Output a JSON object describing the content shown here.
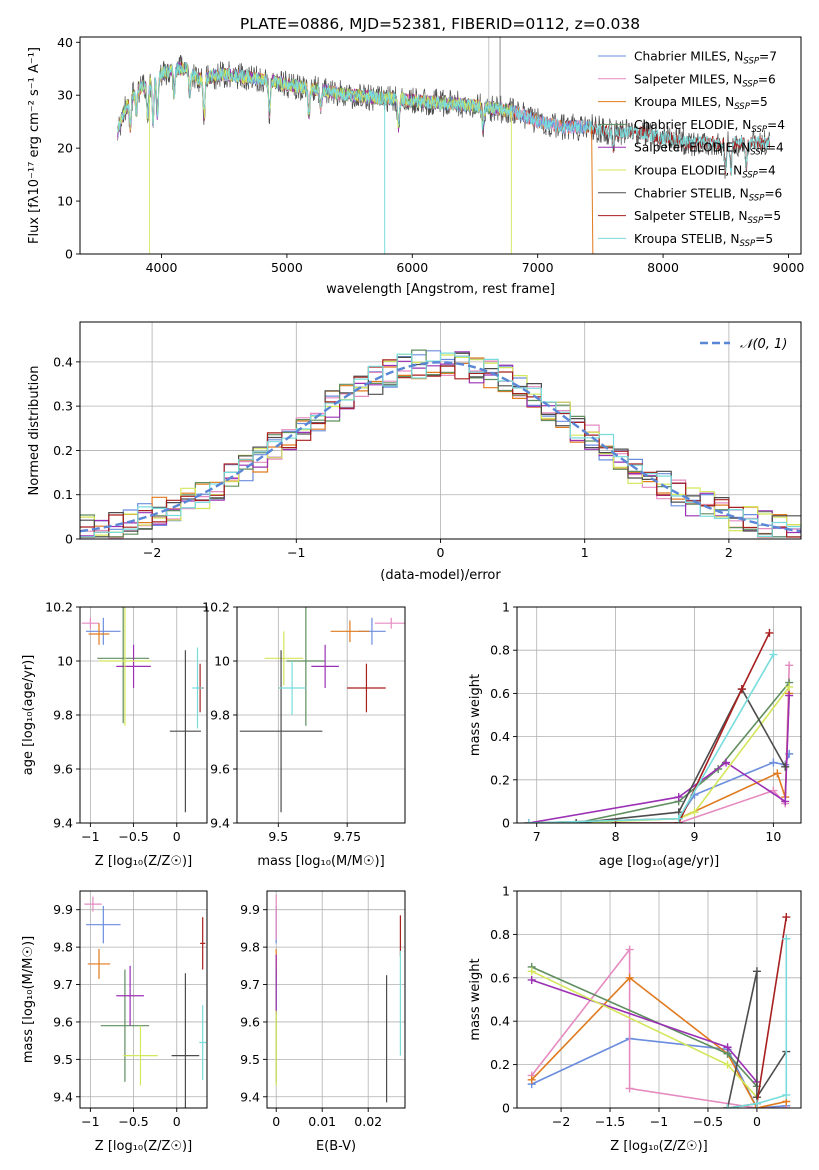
{
  "title": "PLATE=0886, MJD=52381, FIBERID=0112, z=0.038",
  "colors": {
    "ChabrierMILES": "#6b8ddd",
    "SalpeterMILES": "#e58bc0",
    "KroupaMILES": "#e07a1f",
    "ChabrierELODIE": "#5f8e5f",
    "SalpeterELODIE": "#9b30b4",
    "KroupaELODIE": "#d4e65a",
    "ChabrierSTELIB": "#4d4d4d",
    "SalpeterSTELIB": "#a81f1f",
    "KroupaSTELIB": "#79dcdc"
  },
  "chart_data": [
    {
      "type": "line",
      "name": "spectrum",
      "xlabel": "wavelength [Angstrom, rest frame]",
      "ylabel": "Flux [fλ10⁻¹⁷ erg cm⁻² s⁻¹ A⁻¹]",
      "xlim": [
        3350,
        9100
      ],
      "ylim": [
        0,
        41
      ],
      "xticks": [
        4000,
        5000,
        6000,
        7000,
        8000,
        9000
      ],
      "yticks": [
        0,
        10,
        20,
        30,
        40
      ],
      "grid": false,
      "legend_position": "top-right",
      "legend": [
        "Chabrier MILES, N_SSP=7",
        "Salpeter MILES, N_SSP=6",
        "Kroupa MILES, N_SSP=5",
        "Chabrier ELODIE, N_SSP=4",
        "Salpeter ELODIE, N_SSP=4",
        "Kroupa ELODIE, N_SSP=4",
        "Chabrier STELIB, N_SSP=6",
        "Salpeter STELIB, N_SSP=5",
        "Kroupa STELIB, N_SSP=5"
      ],
      "continuum": {
        "x": [
          3650,
          3700,
          3800,
          3900,
          4000,
          4100,
          4200,
          4300,
          4500,
          4800,
          5000,
          5500,
          6000,
          6500,
          6800,
          7000,
          7200,
          7400,
          7600,
          7800,
          8000,
          8200,
          8400,
          8600,
          8850
        ],
        "y": [
          23,
          27,
          31,
          32,
          34,
          35,
          35,
          33,
          34,
          33,
          32,
          30,
          29,
          28,
          27,
          25,
          24,
          24,
          23,
          23,
          22,
          21,
          21,
          21,
          21
        ]
      }
    },
    {
      "type": "bar",
      "name": "residuals",
      "xlabel": "(data-model)/error",
      "ylabel": "Normed distribution",
      "xlim": [
        -2.5,
        2.5
      ],
      "ylim": [
        0,
        0.49
      ],
      "xticks": [
        -2,
        -1,
        0,
        1,
        2
      ],
      "yticks": [
        0.0,
        0.1,
        0.2,
        0.3,
        0.4
      ],
      "grid": true,
      "legend_position": "top-right",
      "legend": [
        "𝒩(0, 1)"
      ],
      "bin_width": 0.1
    },
    {
      "type": "scatter",
      "name": "age-vs-Z",
      "xlabel": "Z [log₁₀(Z/Z☉)]",
      "ylabel": "age  [log₁₀(age/yr)]",
      "xlim": [
        -1.12,
        0.35
      ],
      "ylim": [
        9.4,
        10.2
      ],
      "xticks": [
        -1.0,
        -0.5,
        0.0
      ],
      "yticks": [
        9.4,
        9.6,
        9.8,
        10.0,
        10.2
      ],
      "grid": true,
      "points": [
        {
          "key": "ChabrierMILES",
          "x": -0.85,
          "xe": 0.2,
          "y": 10.11,
          "ye": 0.05
        },
        {
          "key": "SalpeterMILES",
          "x": -1.0,
          "xe": 0.1,
          "y": 10.14,
          "ye": 0.02
        },
        {
          "key": "KroupaMILES",
          "x": -0.9,
          "xe": 0.12,
          "y": 10.1,
          "ye": 0.04
        },
        {
          "key": "ChabrierELODIE",
          "x": -0.62,
          "xe": 0.3,
          "y": 10.01,
          "ye": 0.24
        },
        {
          "key": "SalpeterELODIE",
          "x": -0.5,
          "xe": 0.2,
          "y": 9.98,
          "ye": 0.08
        },
        {
          "key": "KroupaELODIE",
          "x": -0.6,
          "xe": 0.3,
          "y": 10.0,
          "ye": 0.24
        },
        {
          "key": "ChabrierSTELIB",
          "x": 0.1,
          "xe": 0.18,
          "y": 9.74,
          "ye": 0.3
        },
        {
          "key": "SalpeterSTELIB",
          "x": 0.27,
          "xe": 0.04,
          "y": 9.9,
          "ye": 0.09
        },
        {
          "key": "KroupaSTELIB",
          "x": 0.24,
          "xe": 0.06,
          "y": 9.9,
          "ye": 0.15
        }
      ]
    },
    {
      "type": "scatter",
      "name": "age-vs-mass",
      "xlabel": "mass [log₁₀(M/M☉)]",
      "ylabel": "",
      "xlim": [
        9.35,
        9.96
      ],
      "ylim": [
        9.4,
        10.2
      ],
      "xticks": [
        9.5,
        9.75
      ],
      "yticks": [
        9.4,
        9.6,
        9.8,
        10.0,
        10.2
      ],
      "grid": true,
      "points": [
        {
          "key": "ChabrierMILES",
          "x": 9.84,
          "xe": 0.05,
          "y": 10.11,
          "ye": 0.05
        },
        {
          "key": "SalpeterMILES",
          "x": 9.91,
          "xe": 0.06,
          "y": 10.14,
          "ye": 0.02
        },
        {
          "key": "KroupaMILES",
          "x": 9.76,
          "xe": 0.07,
          "y": 10.11,
          "ye": 0.04
        },
        {
          "key": "ChabrierELODIE",
          "x": 9.6,
          "xe": 0.07,
          "y": 10.0,
          "ye": 0.24
        },
        {
          "key": "SalpeterELODIE",
          "x": 9.67,
          "xe": 0.05,
          "y": 9.98,
          "ye": 0.08
        },
        {
          "key": "KroupaELODIE",
          "x": 9.52,
          "xe": 0.07,
          "y": 10.01,
          "ye": 0.1
        },
        {
          "key": "ChabrierSTELIB",
          "x": 9.51,
          "xe": 0.15,
          "y": 9.74,
          "ye": 0.3
        },
        {
          "key": "SalpeterSTELIB",
          "x": 9.82,
          "xe": 0.07,
          "y": 9.9,
          "ye": 0.09
        },
        {
          "key": "KroupaSTELIB",
          "x": 9.55,
          "xe": 0.05,
          "y": 9.9,
          "ye": 0.1
        }
      ]
    },
    {
      "type": "line",
      "name": "weight-vs-age",
      "xlabel": "age  [log₁₀(age/yr)]",
      "ylabel": "mass weight",
      "xlim": [
        6.75,
        10.35
      ],
      "ylim": [
        0,
        1
      ],
      "xticks": [
        7,
        8,
        9,
        10
      ],
      "yticks": [
        0.0,
        0.2,
        0.4,
        0.6,
        0.8,
        1.0
      ],
      "grid": true,
      "series": [
        {
          "key": "ChabrierMILES",
          "x": [
            6.9,
            8.8,
            9.0,
            10.0,
            10.15,
            10.2
          ],
          "y": [
            0.0,
            0.02,
            0.13,
            0.28,
            0.27,
            0.32
          ]
        },
        {
          "key": "SalpeterMILES",
          "x": [
            6.9,
            8.8,
            10.0,
            10.15,
            10.2
          ],
          "y": [
            0.0,
            0.0,
            0.15,
            0.09,
            0.73
          ]
        },
        {
          "key": "KroupaMILES",
          "x": [
            6.9,
            8.8,
            10.05,
            10.15,
            10.2
          ],
          "y": [
            0.0,
            0.02,
            0.23,
            0.12,
            0.6
          ]
        },
        {
          "key": "ChabrierELODIE",
          "x": [
            7.5,
            8.8,
            9.3,
            10.2
          ],
          "y": [
            0.0,
            0.1,
            0.25,
            0.65
          ]
        },
        {
          "key": "SalpeterELODIE",
          "x": [
            6.9,
            8.8,
            9.4,
            10.15,
            10.2
          ],
          "y": [
            0.0,
            0.12,
            0.28,
            0.1,
            0.59
          ]
        },
        {
          "key": "KroupaELODIE",
          "x": [
            7.5,
            8.8,
            9.0,
            10.2
          ],
          "y": [
            0.0,
            0.02,
            0.05,
            0.63
          ]
        },
        {
          "key": "ChabrierSTELIB",
          "x": [
            7.5,
            8.8,
            9.6,
            10.15
          ],
          "y": [
            0.0,
            0.05,
            0.62,
            0.26
          ]
        },
        {
          "key": "SalpeterSTELIB",
          "x": [
            8.0,
            8.8,
            9.6,
            9.95
          ],
          "y": [
            0.0,
            0.0,
            0.62,
            0.88
          ]
        },
        {
          "key": "KroupaSTELIB",
          "x": [
            6.9,
            8.8,
            10.0
          ],
          "y": [
            0.0,
            0.02,
            0.78
          ]
        }
      ]
    },
    {
      "type": "scatter",
      "name": "mass-vs-Z",
      "xlabel": "Z [log₁₀(Z/Z☉)]",
      "ylabel": "mass [log₁₀(M/M☉)]",
      "xlim": [
        -1.12,
        0.35
      ],
      "ylim": [
        9.37,
        9.95
      ],
      "xticks": [
        -1.0,
        -0.5,
        0.0
      ],
      "yticks": [
        9.4,
        9.5,
        9.6,
        9.7,
        9.8,
        9.9
      ],
      "grid": true,
      "points": [
        {
          "key": "ChabrierMILES",
          "x": -0.85,
          "xe": 0.2,
          "y": 9.86,
          "ye": 0.05
        },
        {
          "key": "SalpeterMILES",
          "x": -0.97,
          "xe": 0.1,
          "y": 9.915,
          "ye": 0.02
        },
        {
          "key": "KroupaMILES",
          "x": -0.9,
          "xe": 0.13,
          "y": 9.755,
          "ye": 0.04
        },
        {
          "key": "ChabrierELODIE",
          "x": -0.6,
          "xe": 0.28,
          "y": 9.59,
          "ye": 0.15
        },
        {
          "key": "SalpeterELODIE",
          "x": -0.54,
          "xe": 0.16,
          "y": 9.67,
          "ye": 0.08
        },
        {
          "key": "KroupaELODIE",
          "x": -0.42,
          "xe": 0.2,
          "y": 9.51,
          "ye": 0.08
        },
        {
          "key": "ChabrierSTELIB",
          "x": 0.1,
          "xe": 0.16,
          "y": 9.51,
          "ye": 0.22
        },
        {
          "key": "SalpeterSTELIB",
          "x": 0.3,
          "xe": 0.03,
          "y": 9.81,
          "ye": 0.07
        },
        {
          "key": "KroupaSTELIB",
          "x": 0.3,
          "xe": 0.04,
          "y": 9.545,
          "ye": 0.1
        }
      ]
    },
    {
      "type": "scatter",
      "name": "mass-vs-EBV",
      "xlabel": "E(B-V)",
      "ylabel": "",
      "xlim": [
        -0.002,
        0.028
      ],
      "ylim": [
        9.37,
        9.95
      ],
      "xticks": [
        0.0,
        0.01,
        0.02
      ],
      "yticks": [
        9.4,
        9.5,
        9.6,
        9.7,
        9.8,
        9.9
      ],
      "grid": true,
      "points": [
        {
          "key": "ChabrierMILES",
          "x": 0.0,
          "xe": 0.0,
          "y": 9.86,
          "ye": 0.05
        },
        {
          "key": "SalpeterMILES",
          "x": 0.0,
          "xe": 0.0,
          "y": 9.88,
          "ye": 0.06
        },
        {
          "key": "KroupaMILES",
          "x": 0.0,
          "xe": 0.0,
          "y": 9.755,
          "ye": 0.04
        },
        {
          "key": "ChabrierELODIE",
          "x": 0.0,
          "xe": 0.0,
          "y": 9.59,
          "ye": 0.15
        },
        {
          "key": "SalpeterELODIE",
          "x": 0.0,
          "xe": 0.0,
          "y": 9.7,
          "ye": 0.08
        },
        {
          "key": "KroupaELODIE",
          "x": 0.0,
          "xe": 0.0,
          "y": 9.53,
          "ye": 0.1
        },
        {
          "key": "ChabrierSTELIB",
          "x": 0.024,
          "xe": 0.0,
          "y": 9.555,
          "ye": 0.17
        },
        {
          "key": "SalpeterSTELIB",
          "x": 0.027,
          "xe": 0.0,
          "y": 9.83,
          "ye": 0.055
        },
        {
          "key": "KroupaSTELIB",
          "x": 0.027,
          "xe": 0.0,
          "y": 9.65,
          "ye": 0.14
        }
      ]
    },
    {
      "type": "line",
      "name": "weight-vs-Z",
      "xlabel": "Z [log₁₀(Z/Z☉)]",
      "ylabel": "mass weight",
      "xlim": [
        -2.45,
        0.45
      ],
      "ylim": [
        0,
        1
      ],
      "xticks": [
        -2.0,
        -1.5,
        -1.0,
        -0.5,
        0.0
      ],
      "yticks": [
        0.0,
        0.2,
        0.4,
        0.6,
        0.8,
        1.0
      ],
      "grid": true,
      "series": [
        {
          "key": "ChabrierMILES",
          "x": [
            -2.3,
            -1.3,
            -0.3,
            0.0,
            0.3
          ],
          "y": [
            0.11,
            0.32,
            0.27,
            0.0,
            0.01
          ]
        },
        {
          "key": "SalpeterMILES",
          "x": [
            -2.3,
            -1.3,
            -1.3,
            0.0,
            0.3
          ],
          "y": [
            0.15,
            0.73,
            0.09,
            0.0,
            0.0
          ]
        },
        {
          "key": "KroupaMILES",
          "x": [
            -2.3,
            -1.3,
            -0.3,
            0.0,
            0.3
          ],
          "y": [
            0.13,
            0.6,
            0.25,
            0.0,
            0.03
          ]
        },
        {
          "key": "ChabrierELODIE",
          "x": [
            -2.3,
            -0.3,
            0.0
          ],
          "y": [
            0.65,
            0.25,
            0.1
          ]
        },
        {
          "key": "SalpeterELODIE",
          "x": [
            -2.3,
            -0.3,
            0.0
          ],
          "y": [
            0.59,
            0.28,
            0.12
          ]
        },
        {
          "key": "KroupaELODIE",
          "x": [
            -2.3,
            -0.3,
            0.0
          ],
          "y": [
            0.63,
            0.2,
            0.05
          ]
        },
        {
          "key": "ChabrierSTELIB",
          "x": [
            -0.3,
            0.0,
            0.0,
            0.3
          ],
          "y": [
            0.0,
            0.63,
            0.05,
            0.26
          ]
        },
        {
          "key": "SalpeterSTELIB",
          "x": [
            -0.3,
            0.0,
            0.3
          ],
          "y": [
            0.0,
            0.02,
            0.88
          ]
        },
        {
          "key": "KroupaSTELIB",
          "x": [
            -0.3,
            0.0,
            0.3,
            0.3
          ],
          "y": [
            0.0,
            0.02,
            0.06,
            0.78
          ]
        }
      ]
    }
  ]
}
